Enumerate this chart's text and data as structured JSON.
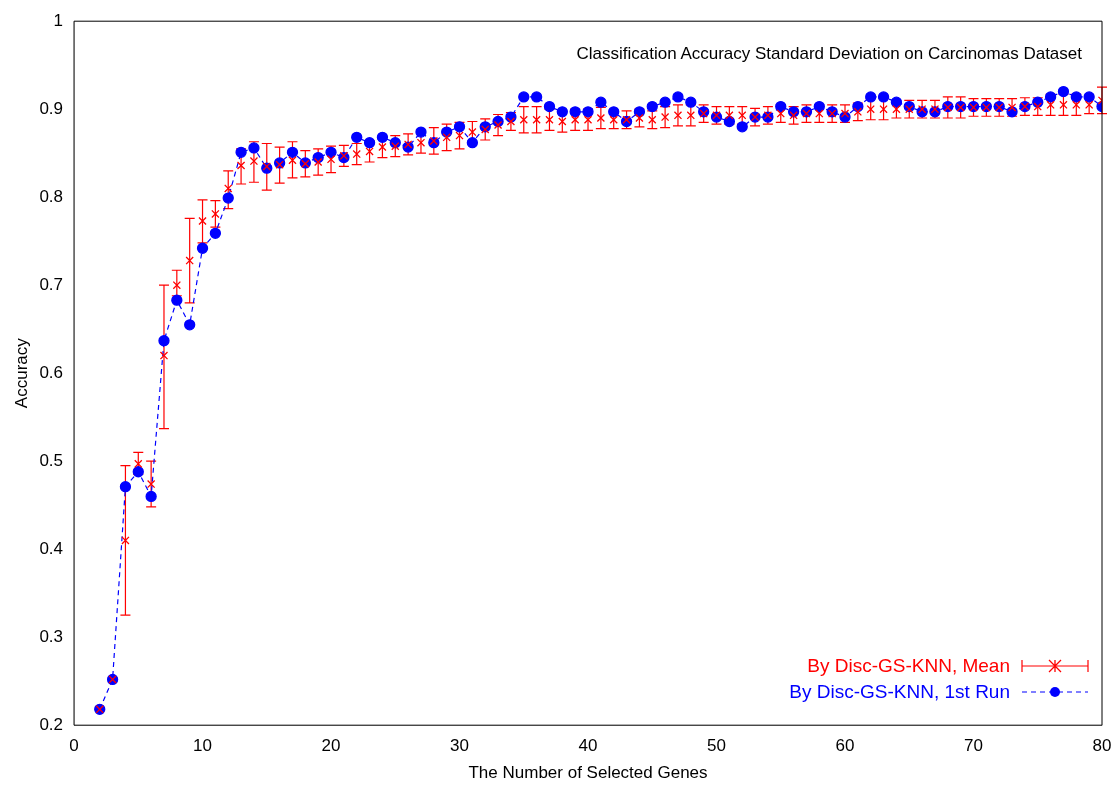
{
  "chart_data": {
    "type": "line",
    "title": "Classification Accuracy Standard Deviation on Carcinomas Dataset",
    "xlabel": "The Number of Selected Genes",
    "ylabel": "Accuracy",
    "x": [
      2,
      3,
      4,
      5,
      6,
      7,
      8,
      9,
      10,
      11,
      12,
      13,
      14,
      15,
      16,
      17,
      18,
      19,
      20,
      21,
      22,
      23,
      24,
      25,
      26,
      27,
      28,
      29,
      30,
      31,
      32,
      33,
      34,
      35,
      36,
      37,
      38,
      39,
      40,
      41,
      42,
      43,
      44,
      45,
      46,
      47,
      48,
      49,
      50,
      51,
      52,
      53,
      54,
      55,
      56,
      57,
      58,
      59,
      60,
      61,
      62,
      63,
      64,
      65,
      66,
      67,
      68,
      69,
      70,
      71,
      72,
      73,
      74,
      75,
      76,
      77,
      78,
      79,
      80
    ],
    "series": [
      {
        "name": "By Disc-GS-KNN, Mean",
        "type": "scatter",
        "color": "#ff0000",
        "marker": "cross",
        "values": [
          0.218,
          0.252,
          0.41,
          0.497,
          0.474,
          0.62,
          0.7,
          0.728,
          0.773,
          0.781,
          0.81,
          0.836,
          0.841,
          0.835,
          0.837,
          0.842,
          0.838,
          0.84,
          0.843,
          0.847,
          0.849,
          0.852,
          0.857,
          0.858,
          0.86,
          0.862,
          0.864,
          0.868,
          0.87,
          0.874,
          0.877,
          0.882,
          0.886,
          0.888,
          0.888,
          0.888,
          0.886,
          0.888,
          0.888,
          0.89,
          0.888,
          0.888,
          0.89,
          0.888,
          0.891,
          0.893,
          0.893,
          0.895,
          0.893,
          0.893,
          0.893,
          0.891,
          0.893,
          0.895,
          0.893,
          0.895,
          0.895,
          0.895,
          0.895,
          0.897,
          0.9,
          0.9,
          0.9,
          0.9,
          0.9,
          0.9,
          0.902,
          0.902,
          0.902,
          0.902,
          0.902,
          0.902,
          0.903,
          0.903,
          0.905,
          0.905,
          0.905,
          0.905,
          0.91
        ],
        "errors": [
          null,
          null,
          [
            0.325,
            0.495
          ],
          [
            0.485,
            0.51
          ],
          [
            0.448,
            0.5
          ],
          [
            0.537,
            0.7
          ],
          [
            0.688,
            0.717
          ],
          [
            0.68,
            0.776
          ],
          [
            0.748,
            0.797
          ],
          [
            0.766,
            0.796
          ],
          [
            0.787,
            0.83
          ],
          [
            0.815,
            0.855
          ],
          [
            0.817,
            0.863
          ],
          [
            0.808,
            0.861
          ],
          [
            0.816,
            0.857
          ],
          [
            0.822,
            0.863
          ],
          0.015,
          0.015,
          0.015,
          0.012,
          0.012,
          0.012,
          0.012,
          0.012,
          0.012,
          0.012,
          0.015,
          0.015,
          0.015,
          0.012,
          0.012,
          0.012,
          0.01,
          0.015,
          0.015,
          0.012,
          0.012,
          0.012,
          0.012,
          0.012,
          0.01,
          0.01,
          0.01,
          0.01,
          0.012,
          0.012,
          0.012,
          0.01,
          0.01,
          0.01,
          0.01,
          0.01,
          0.01,
          0.01,
          0.01,
          0.01,
          0.01,
          0.01,
          0.01,
          0.01,
          0.012,
          0.012,
          0.01,
          0.01,
          0.01,
          0.01,
          0.012,
          0.012,
          0.01,
          0.01,
          0.01,
          0.01,
          0.01,
          0.01,
          0.012,
          0.012,
          0.012,
          0.01,
          0.015
        ]
      },
      {
        "name": "By Disc-GS-KNN, 1st Run",
        "color": "#0000ff",
        "marker": "circle",
        "line_style": "dashed",
        "values": [
          0.218,
          0.252,
          0.471,
          0.488,
          0.46,
          0.637,
          0.683,
          0.655,
          0.742,
          0.759,
          0.799,
          0.851,
          0.856,
          0.833,
          0.839,
          0.851,
          0.839,
          0.845,
          0.851,
          0.845,
          0.868,
          0.862,
          0.868,
          0.862,
          0.857,
          0.874,
          0.862,
          0.874,
          0.88,
          0.862,
          0.88,
          0.886,
          0.891,
          0.914,
          0.914,
          0.903,
          0.897,
          0.897,
          0.897,
          0.908,
          0.897,
          0.886,
          0.897,
          0.903,
          0.908,
          0.914,
          0.908,
          0.897,
          0.891,
          0.886,
          0.88,
          0.891,
          0.891,
          0.903,
          0.897,
          0.897,
          0.903,
          0.897,
          0.891,
          0.903,
          0.914,
          0.914,
          0.908,
          0.903,
          0.897,
          0.897,
          0.903,
          0.903,
          0.903,
          0.903,
          0.903,
          0.897,
          0.903,
          0.908,
          0.914,
          0.92,
          0.914,
          0.914,
          0.903
        ]
      }
    ],
    "xlim": [
      0,
      80
    ],
    "xticks": [
      0,
      10,
      20,
      30,
      40,
      50,
      60,
      70,
      80
    ],
    "ylim": [
      0.2,
      1
    ],
    "yticks": [
      0.2,
      0.3,
      0.4,
      0.5,
      0.6,
      0.7,
      0.8,
      0.9,
      1
    ],
    "grid": false,
    "legend": "bottom right"
  }
}
